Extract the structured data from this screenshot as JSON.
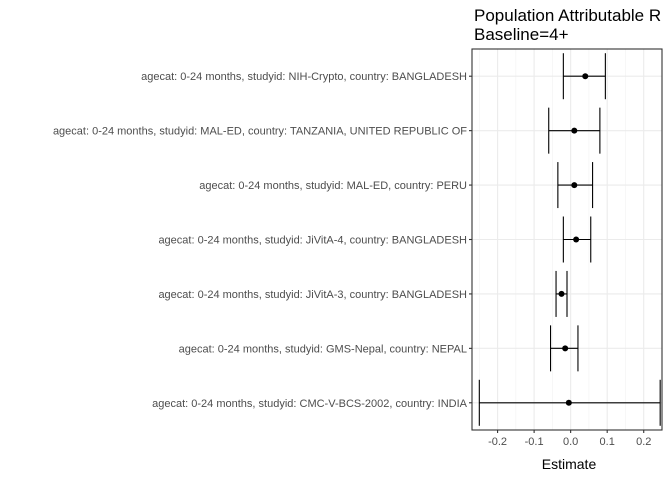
{
  "chart_data": {
    "type": "scatter",
    "title_lines": [
      "Population Attributable R",
      "Baseline=4+"
    ],
    "xlabel": "Estimate",
    "ylabel": "",
    "xlim": [
      -0.27,
      0.25
    ],
    "x_ticks": [
      -0.2,
      -0.1,
      0.0,
      0.1,
      0.2
    ],
    "x_tick_labels": [
      "-0.2",
      "-0.1",
      "0.0",
      "0.1",
      "0.2"
    ],
    "grid": true,
    "points": [
      {
        "label": "agecat: 0-24 months, studyid: NIH-Crypto, country: BANGLADESH",
        "estimate": 0.04,
        "ci_lower": -0.02,
        "ci_upper": 0.095
      },
      {
        "label": "agecat: 0-24 months, studyid: MAL-ED, country: TANZANIA, UNITED REPUBLIC OF",
        "estimate": 0.01,
        "ci_lower": -0.06,
        "ci_upper": 0.08
      },
      {
        "label": "agecat: 0-24 months, studyid: MAL-ED, country: PERU",
        "estimate": 0.01,
        "ci_lower": -0.035,
        "ci_upper": 0.06
      },
      {
        "label": "agecat: 0-24 months, studyid: JiVitA-4, country: BANGLADESH",
        "estimate": 0.015,
        "ci_lower": -0.02,
        "ci_upper": 0.055
      },
      {
        "label": "agecat: 0-24 months, studyid: JiVitA-3, country: BANGLADESH",
        "estimate": -0.025,
        "ci_lower": -0.04,
        "ci_upper": -0.01
      },
      {
        "label": "agecat: 0-24 months, studyid: GMS-Nepal, country: NEPAL",
        "estimate": -0.015,
        "ci_lower": -0.055,
        "ci_upper": 0.02
      },
      {
        "label": "agecat: 0-24 months, studyid: CMC-V-BCS-2002, country: INDIA",
        "estimate": -0.005,
        "ci_lower": -0.25,
        "ci_upper": 0.245
      }
    ]
  }
}
